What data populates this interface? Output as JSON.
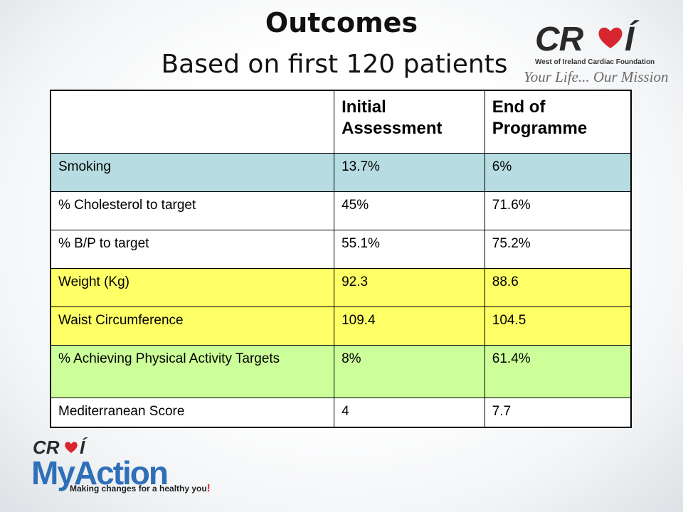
{
  "slide": {
    "title": "Outcomes",
    "subtitle": "Based on first 120 patients"
  },
  "logo_top": {
    "brand": "CR",
    "brand_end": "Í",
    "foundation": "West of Ireland Cardiac Foundation",
    "tagline": "Your Life... Our Mission",
    "heart_color": "#d8262e"
  },
  "table": {
    "headers": [
      "",
      "Initial Assessment",
      "End of Programme"
    ],
    "rows": [
      {
        "label": "Smoking",
        "initial": "13.7%",
        "end": "6%",
        "color": "#b7dde2"
      },
      {
        "label": "% Cholesterol to target",
        "initial": "45%",
        "end": "71.6%",
        "color": "#ffffff"
      },
      {
        "label": "% B/P to target",
        "initial": "55.1%",
        "end": "75.2%",
        "color": "#ffffff"
      },
      {
        "label": "Weight (Kg)",
        "initial": "92.3",
        "end": "88.6",
        "color": "#ffff66"
      },
      {
        "label": "Waist Circumference",
        "initial": "109.4",
        "end": "104.5",
        "color": "#ffff66"
      },
      {
        "label": "% Achieving Physical Activity Targets",
        "initial": "8%",
        "end": "61.4%",
        "color": "#ccff99"
      },
      {
        "label": "Mediterranean Score",
        "initial": "4",
        "end": "7.7",
        "color": "#ffffff"
      }
    ]
  },
  "logo_bottom": {
    "brand": "CR",
    "brand_end": "Í",
    "product": "MyAction",
    "tagline": "Making changes for a healthy you",
    "exclaim": "!",
    "product_color": "#2e6fb8"
  }
}
